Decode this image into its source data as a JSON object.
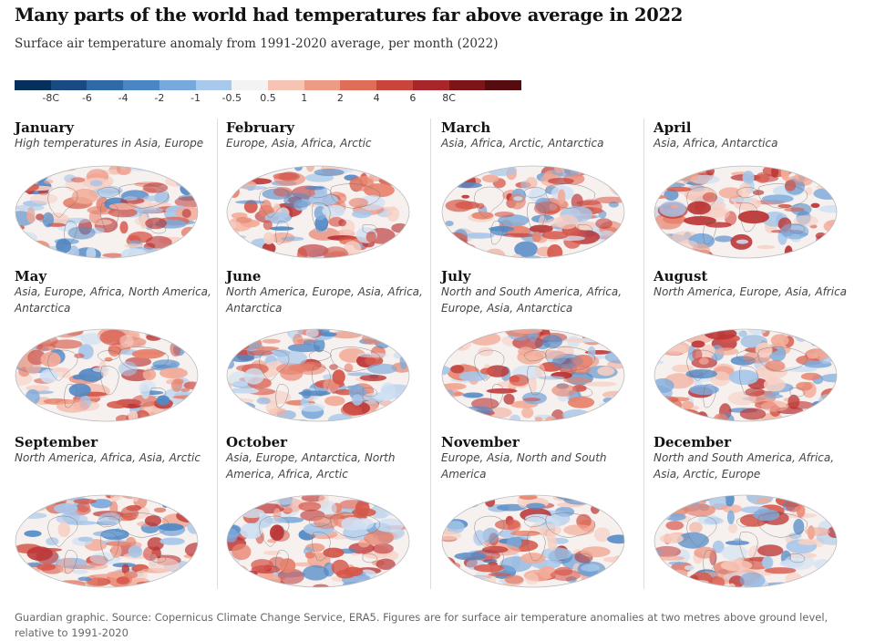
{
  "header": {
    "title": "Many parts of the world had temperatures far above average in 2022",
    "subtitle": "Surface air temperature anomaly from 1991-2020 average, per month (2022)"
  },
  "legend": {
    "labels": [
      "-8C",
      "-6",
      "-4",
      "-2",
      "-1",
      "-0.5",
      "0.5",
      "1",
      "2",
      "4",
      "6",
      "8C"
    ],
    "colors": [
      "#05305c",
      "#1a4a82",
      "#2f6aa6",
      "#4a86c3",
      "#78a9dc",
      "#a9c9ec",
      "#f3f3f3",
      "#f6c4b5",
      "#ee9b86",
      "#e06d58",
      "#c9443a",
      "#a8262a",
      "#7d1418",
      "#560b0e"
    ]
  },
  "months": [
    {
      "name": "January",
      "description": "High temperatures in Asia, Europe"
    },
    {
      "name": "February",
      "description": "Europe, Asia, Africa, Arctic"
    },
    {
      "name": "March",
      "description": "Asia, Africa, Arctic, Antarctica"
    },
    {
      "name": "April",
      "description": "Asia, Africa, Antarctica"
    },
    {
      "name": "May",
      "description": "Asia, Europe, Africa, North America, Antarctica"
    },
    {
      "name": "June",
      "description": "North America, Europe, Asia, Africa, Antarctica"
    },
    {
      "name": "July",
      "description": "North and South America, Africa, Europe, Asia, Antarctica"
    },
    {
      "name": "August",
      "description": "North America, Europe, Asia, Africa"
    },
    {
      "name": "September",
      "description": "North America, Africa, Asia, Arctic"
    },
    {
      "name": "October",
      "description": "Asia, Europe, Antarctica, North America, Africa, Arctic"
    },
    {
      "name": "November",
      "description": "Europe, Asia, North and South America"
    },
    {
      "name": "December",
      "description": "North and South America, Africa, Asia, Arctic, Europe"
    }
  ],
  "footer": {
    "source": "Guardian graphic. Source: Copernicus Climate Change Service, ERA5. Figures are for surface air temperature anomalies at two metres above ground level, relative to 1991-2020"
  }
}
